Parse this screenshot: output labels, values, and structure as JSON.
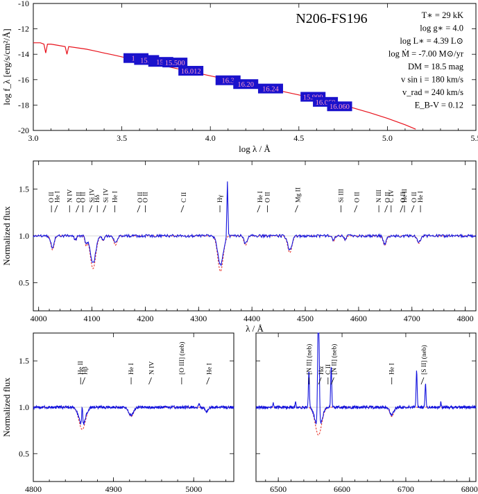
{
  "chart_data": [
    {
      "type": "line",
      "name": "sed",
      "title": "N206-FS196",
      "xlabel": "log λ / Å",
      "ylabel": "log f_λ [erg/s/cm²/Å]",
      "xlim": [
        3.0,
        5.5
      ],
      "ylim": [
        -20,
        -10
      ],
      "xticks": [
        "3.0",
        "3.5",
        "4.0",
        "4.5",
        "5.0",
        "5.5"
      ],
      "yticks": [
        "-10",
        "-12",
        "-14",
        "-16",
        "-18",
        "-20"
      ],
      "model": {
        "x": [
          3.0,
          3.04,
          3.06,
          3.07,
          3.08,
          3.1,
          3.14,
          3.18,
          3.19,
          3.2,
          3.25,
          3.3,
          3.35,
          3.4,
          3.45,
          3.5,
          3.55,
          3.6,
          3.7,
          3.8,
          3.9,
          4.0,
          4.1,
          4.2,
          4.3,
          4.4,
          4.5,
          4.6,
          4.7,
          4.8,
          4.9,
          5.0,
          5.1,
          5.16
        ],
        "y": [
          -13.1,
          -13.1,
          -13.2,
          -13.9,
          -13.2,
          -13.2,
          -13.3,
          -13.4,
          -14.0,
          -13.4,
          -13.5,
          -13.6,
          -13.75,
          -13.9,
          -14.05,
          -14.2,
          -14.35,
          -14.5,
          -14.8,
          -15.1,
          -15.4,
          -15.7,
          -16.0,
          -16.3,
          -16.6,
          -16.9,
          -17.2,
          -17.5,
          -17.85,
          -18.2,
          -18.6,
          -19.05,
          -19.55,
          -19.9
        ]
      },
      "photometry": [
        {
          "logl": 3.58,
          "mag": "14.",
          "y": -14.3
        },
        {
          "logl": 3.64,
          "mag": "15.9",
          "y": -14.45
        },
        {
          "logl": 3.72,
          "mag": "15.",
          "y": -14.6
        },
        {
          "logl": 3.8,
          "mag": "15.500",
          "y": -14.65
        },
        {
          "logl": 3.89,
          "mag": "16.012",
          "y": -15.3
        },
        {
          "logl": 4.1,
          "mag": "16.3",
          "y": -16.05
        },
        {
          "logl": 4.2,
          "mag": "16.20",
          "y": -16.35
        },
        {
          "logl": 4.34,
          "mag": "16.24",
          "y": -16.7
        },
        {
          "logl": 4.58,
          "mag": "15.999",
          "y": -17.35
        },
        {
          "logl": 4.65,
          "mag": "16.060",
          "y": -17.75
        },
        {
          "logl": 4.73,
          "mag": "16.060",
          "y": -18.1
        }
      ],
      "params": [
        {
          "text": "T∗ = 29 kK"
        },
        {
          "text": "log g∗ = 4.0"
        },
        {
          "text": "log L∗ = 4.39 L⊙"
        },
        {
          "text": "log Ṁ = -7.00 M⊙/yr"
        },
        {
          "text": "DM = 18.5 mag"
        },
        {
          "text": "v sin i = 180 km/s"
        },
        {
          "text": "v_rad = 240 km/s"
        },
        {
          "text": "E_B-V = 0.12"
        }
      ]
    },
    {
      "type": "line",
      "name": "blue-spectrum",
      "xlabel": "λ / Å",
      "ylabel": "Normalized flux",
      "xlim": [
        3990,
        4820
      ],
      "ylim": [
        0.2,
        1.8
      ],
      "xticks": [
        4000,
        4100,
        4200,
        4300,
        4400,
        4500,
        4600,
        4700,
        4800
      ],
      "yticks": [
        "0.5",
        "1.0",
        "1.5"
      ],
      "continuum": 1.0,
      "absorption_lines": [
        {
          "center": 4026,
          "depth": 0.15,
          "width": 3
        },
        {
          "center": 4069,
          "depth": 0.05,
          "width": 2
        },
        {
          "center": 4089,
          "depth": 0.1,
          "width": 2
        },
        {
          "center": 4102,
          "depth": 0.35,
          "width": 5
        },
        {
          "center": 4121,
          "depth": 0.05,
          "width": 2
        },
        {
          "center": 4144,
          "depth": 0.1,
          "width": 3
        },
        {
          "center": 4341,
          "depth": 0.38,
          "width": 5
        },
        {
          "center": 4388,
          "depth": 0.1,
          "width": 3
        },
        {
          "center": 4471,
          "depth": 0.18,
          "width": 4
        },
        {
          "center": 4553,
          "depth": 0.06,
          "width": 2
        },
        {
          "center": 4575,
          "depth": 0.05,
          "width": 2
        },
        {
          "center": 4649,
          "depth": 0.1,
          "width": 3
        },
        {
          "center": 4713,
          "depth": 0.08,
          "width": 3
        }
      ],
      "emission_lines": [
        {
          "center": 4354,
          "height": 0.6,
          "width": 1
        }
      ],
      "line_ids": [
        {
          "label": "O II",
          "x": 4024
        },
        {
          "label": "He I",
          "x": 4030
        },
        {
          "label": "N IV",
          "x": 4058
        },
        {
          "label": "O II",
          "x": 4070
        },
        {
          "label": "O II",
          "x": 4083
        },
        {
          "label": "Si IV",
          "x": 4095
        },
        {
          "label": "Hδ",
          "x": 4110
        },
        {
          "label": "Si IV",
          "x": 4121
        },
        {
          "label": "He I",
          "x": 4143
        },
        {
          "label": "O II",
          "x": 4185
        },
        {
          "label": "O II",
          "x": 4200
        },
        {
          "label": "C II",
          "x": 4267
        },
        {
          "label": "Hγ",
          "x": 4340
        },
        {
          "label": "He I",
          "x": 4410
        },
        {
          "label": "O II",
          "x": 4429
        },
        {
          "label": "Mg II",
          "x": 4481
        },
        {
          "label": "Si III",
          "x": 4567
        },
        {
          "label": "O II",
          "x": 4592
        },
        {
          "label": "N III",
          "x": 4638
        },
        {
          "label": "O II",
          "x": 4649
        },
        {
          "label": "C IV",
          "x": 4661
        },
        {
          "label": "O II",
          "x": 4678
        },
        {
          "label": "He II",
          "x": 4686
        },
        {
          "label": "O II",
          "x": 4699
        },
        {
          "label": "He I",
          "x": 4716
        }
      ]
    },
    {
      "type": "line",
      "name": "hbeta-spectrum",
      "xlabel": "λ / Å",
      "ylabel": "Normalized flux",
      "xlim": [
        4800,
        5050
      ],
      "ylim": [
        0.2,
        1.8
      ],
      "xticks": [
        4800,
        4900,
        5000
      ],
      "yticks": [
        "0.5",
        "1.0",
        "1.5"
      ],
      "continuum": 1.0,
      "absorption_lines": [
        {
          "center": 4861,
          "depth": 0.24,
          "width": 4
        },
        {
          "center": 4922,
          "depth": 0.1,
          "width": 3
        },
        {
          "center": 5016,
          "depth": 0.05,
          "width": 2
        }
      ],
      "emission_lines": [
        {
          "center": 4861,
          "height": 0.2,
          "width": 0.6
        },
        {
          "center": 5007,
          "height": 0.03,
          "width": 0.8
        }
      ],
      "line_ids": [
        {
          "label": "He II",
          "x": 4859
        },
        {
          "label": "Hβ",
          "x": 4861
        },
        {
          "label": "He I",
          "x": 4922
        },
        {
          "label": "N IV",
          "x": 4944
        },
        {
          "label": "[O III] (neb)",
          "x": 4985
        },
        {
          "label": "He I",
          "x": 5016
        }
      ]
    },
    {
      "type": "line",
      "name": "halpha-spectrum",
      "xlabel": "λ / Å",
      "ylabel": "",
      "xlim": [
        6465,
        6810
      ],
      "ylim": [
        0.2,
        1.8
      ],
      "xticks": [
        6500,
        6600,
        6700,
        6800
      ],
      "yticks": [],
      "continuum": 1.0,
      "absorption_lines": [
        {
          "center": 6563,
          "depth": 0.3,
          "width": 5
        },
        {
          "center": 6678,
          "depth": 0.1,
          "width": 3
        }
      ],
      "emission_lines": [
        {
          "center": 6548,
          "height": 0.4,
          "width": 0.8
        },
        {
          "center": 6563,
          "height": 1.4,
          "width": 1.2
        },
        {
          "center": 6583,
          "height": 0.45,
          "width": 0.8
        },
        {
          "center": 6717,
          "height": 0.4,
          "width": 0.8
        },
        {
          "center": 6731,
          "height": 0.25,
          "width": 0.8
        },
        {
          "center": 6527,
          "height": 0.07,
          "width": 0.6
        },
        {
          "center": 6492,
          "height": 0.04,
          "width": 0.6
        },
        {
          "center": 6755,
          "height": 0.06,
          "width": 0.6
        }
      ],
      "line_ids": [
        {
          "label": "[N II] (neb)",
          "x": 6548
        },
        {
          "label": "Hα",
          "x": 6563
        },
        {
          "label": "C II",
          "x": 6578
        },
        {
          "label": "[N II] (neb)",
          "x": 6583
        },
        {
          "label": "He I",
          "x": 6678
        },
        {
          "label": "[S II] (neb)",
          "x": 6724
        }
      ]
    }
  ]
}
